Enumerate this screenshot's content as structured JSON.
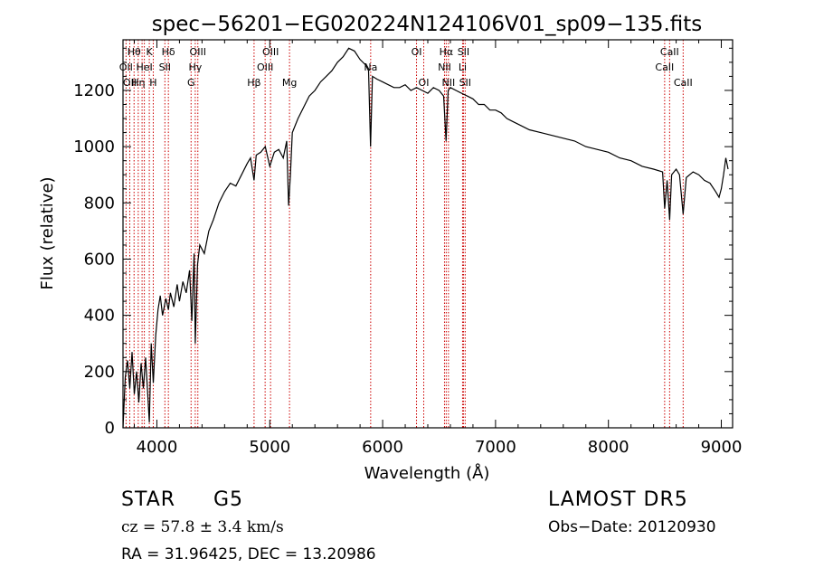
{
  "chart_data": {
    "type": "line",
    "title": "spec−56201−EG020224N124106V01_sp09−135.fits",
    "xlabel": "Wavelength (Å)",
    "ylabel": "Flux (relative)",
    "xlim": [
      3700,
      9100
    ],
    "ylim": [
      0,
      1380
    ],
    "xticks": [
      4000,
      5000,
      6000,
      7000,
      8000,
      9000
    ],
    "yticks": [
      0,
      200,
      400,
      600,
      800,
      1000,
      1200
    ],
    "grid": false,
    "line_color": "#000000",
    "marker_line_color": "#cc0000",
    "series": [
      {
        "x": [
          3700,
          3720,
          3740,
          3760,
          3780,
          3800,
          3820,
          3840,
          3860,
          3880,
          3900,
          3920,
          3933,
          3950,
          3968,
          3990,
          4010,
          4030,
          4050,
          4080,
          4102,
          4120,
          4150,
          4180,
          4200,
          4230,
          4260,
          4290,
          4310,
          4330,
          4340,
          4360,
          4380,
          4420,
          4460,
          4500,
          4550,
          4600,
          4650,
          4700,
          4750,
          4800,
          4830,
          4861,
          4880,
          4920,
          4960,
          5000,
          5040,
          5080,
          5120,
          5150,
          5167,
          5183,
          5200,
          5250,
          5300,
          5350,
          5400,
          5450,
          5500,
          5550,
          5600,
          5650,
          5700,
          5750,
          5800,
          5850,
          5875,
          5893,
          5910,
          5950,
          6000,
          6050,
          6100,
          6150,
          6200,
          6250,
          6300,
          6350,
          6400,
          6450,
          6500,
          6540,
          6562,
          6580,
          6600,
          6650,
          6700,
          6750,
          6800,
          6850,
          6900,
          6950,
          7000,
          7050,
          7100,
          7150,
          7200,
          7300,
          7400,
          7500,
          7600,
          7700,
          7800,
          7900,
          8000,
          8100,
          8200,
          8300,
          8400,
          8480,
          8498,
          8520,
          8542,
          8560,
          8600,
          8630,
          8662,
          8690,
          8750,
          8800,
          8850,
          8900,
          8950,
          8980,
          9000,
          9020,
          9040,
          9060
        ],
        "y": [
          0,
          180,
          240,
          140,
          270,
          120,
          200,
          90,
          230,
          140,
          250,
          110,
          20,
          300,
          160,
          330,
          420,
          470,
          400,
          460,
          420,
          480,
          430,
          510,
          450,
          520,
          480,
          560,
          380,
          620,
          300,
          580,
          650,
          620,
          700,
          740,
          800,
          840,
          870,
          860,
          900,
          940,
          960,
          880,
          970,
          980,
          1000,
          930,
          980,
          990,
          960,
          1020,
          790,
          900,
          1050,
          1100,
          1140,
          1180,
          1200,
          1230,
          1250,
          1270,
          1300,
          1320,
          1350,
          1340,
          1310,
          1290,
          1270,
          1000,
          1250,
          1240,
          1230,
          1220,
          1210,
          1210,
          1220,
          1200,
          1210,
          1200,
          1190,
          1210,
          1200,
          1180,
          1020,
          1200,
          1210,
          1200,
          1190,
          1180,
          1170,
          1150,
          1150,
          1130,
          1130,
          1120,
          1100,
          1090,
          1080,
          1060,
          1050,
          1040,
          1030,
          1020,
          1000,
          990,
          980,
          960,
          950,
          930,
          920,
          910,
          780,
          880,
          740,
          900,
          920,
          900,
          760,
          890,
          910,
          900,
          880,
          870,
          840,
          820,
          850,
          900,
          960,
          920
        ]
      }
    ],
    "line_markers": [
      {
        "wl": 3727,
        "label": "OII",
        "row": 1
      },
      {
        "wl": 3760,
        "label": "OII",
        "row": 2
      },
      {
        "wl": 3798,
        "label": "Hθ",
        "row": 0
      },
      {
        "wl": 3835,
        "label": "Hη",
        "row": 2
      },
      {
        "wl": 3869,
        "label": "",
        "row": 0
      },
      {
        "wl": 3889,
        "label": "HeI",
        "row": 1
      },
      {
        "wl": 3933,
        "label": "K",
        "row": 0
      },
      {
        "wl": 3968,
        "label": "H",
        "row": 2
      },
      {
        "wl": 4071,
        "label": "SII",
        "row": 1
      },
      {
        "wl": 4102,
        "label": "Hδ",
        "row": 0
      },
      {
        "wl": 4303,
        "label": "G",
        "row": 2
      },
      {
        "wl": 4340,
        "label": "Hγ",
        "row": 1
      },
      {
        "wl": 4363,
        "label": "OIII",
        "row": 0
      },
      {
        "wl": 4861,
        "label": "Hβ",
        "row": 2
      },
      {
        "wl": 4959,
        "label": "OIII",
        "row": 1
      },
      {
        "wl": 5007,
        "label": "OIII",
        "row": 0
      },
      {
        "wl": 5175,
        "label": "Mg",
        "row": 2
      },
      {
        "wl": 5894,
        "label": "Na",
        "row": 1
      },
      {
        "wl": 6300,
        "label": "OI",
        "row": 0
      },
      {
        "wl": 6364,
        "label": "OI",
        "row": 2
      },
      {
        "wl": 6548,
        "label": "NII",
        "row": 1
      },
      {
        "wl": 6563,
        "label": "Hα",
        "row": 0
      },
      {
        "wl": 6583,
        "label": "NII",
        "row": 2
      },
      {
        "wl": 6708,
        "label": "Li",
        "row": 1
      },
      {
        "wl": 6716,
        "label": "SII",
        "row": 0
      },
      {
        "wl": 6731,
        "label": "SII",
        "row": 2
      },
      {
        "wl": 8498,
        "label": "CaII",
        "row": 1
      },
      {
        "wl": 8542,
        "label": "CaII",
        "row": 0
      },
      {
        "wl": 8662,
        "label": "CaII",
        "row": 2
      }
    ]
  },
  "info": {
    "object_type": "STAR",
    "subclass": "G5",
    "survey": "LAMOST DR5",
    "redshift": "cz = 57.8 ± 3.4 km/s",
    "obs_date": "Obs−Date: 20120930",
    "coords": "RA =  31.96425, DEC =  13.20986"
  }
}
